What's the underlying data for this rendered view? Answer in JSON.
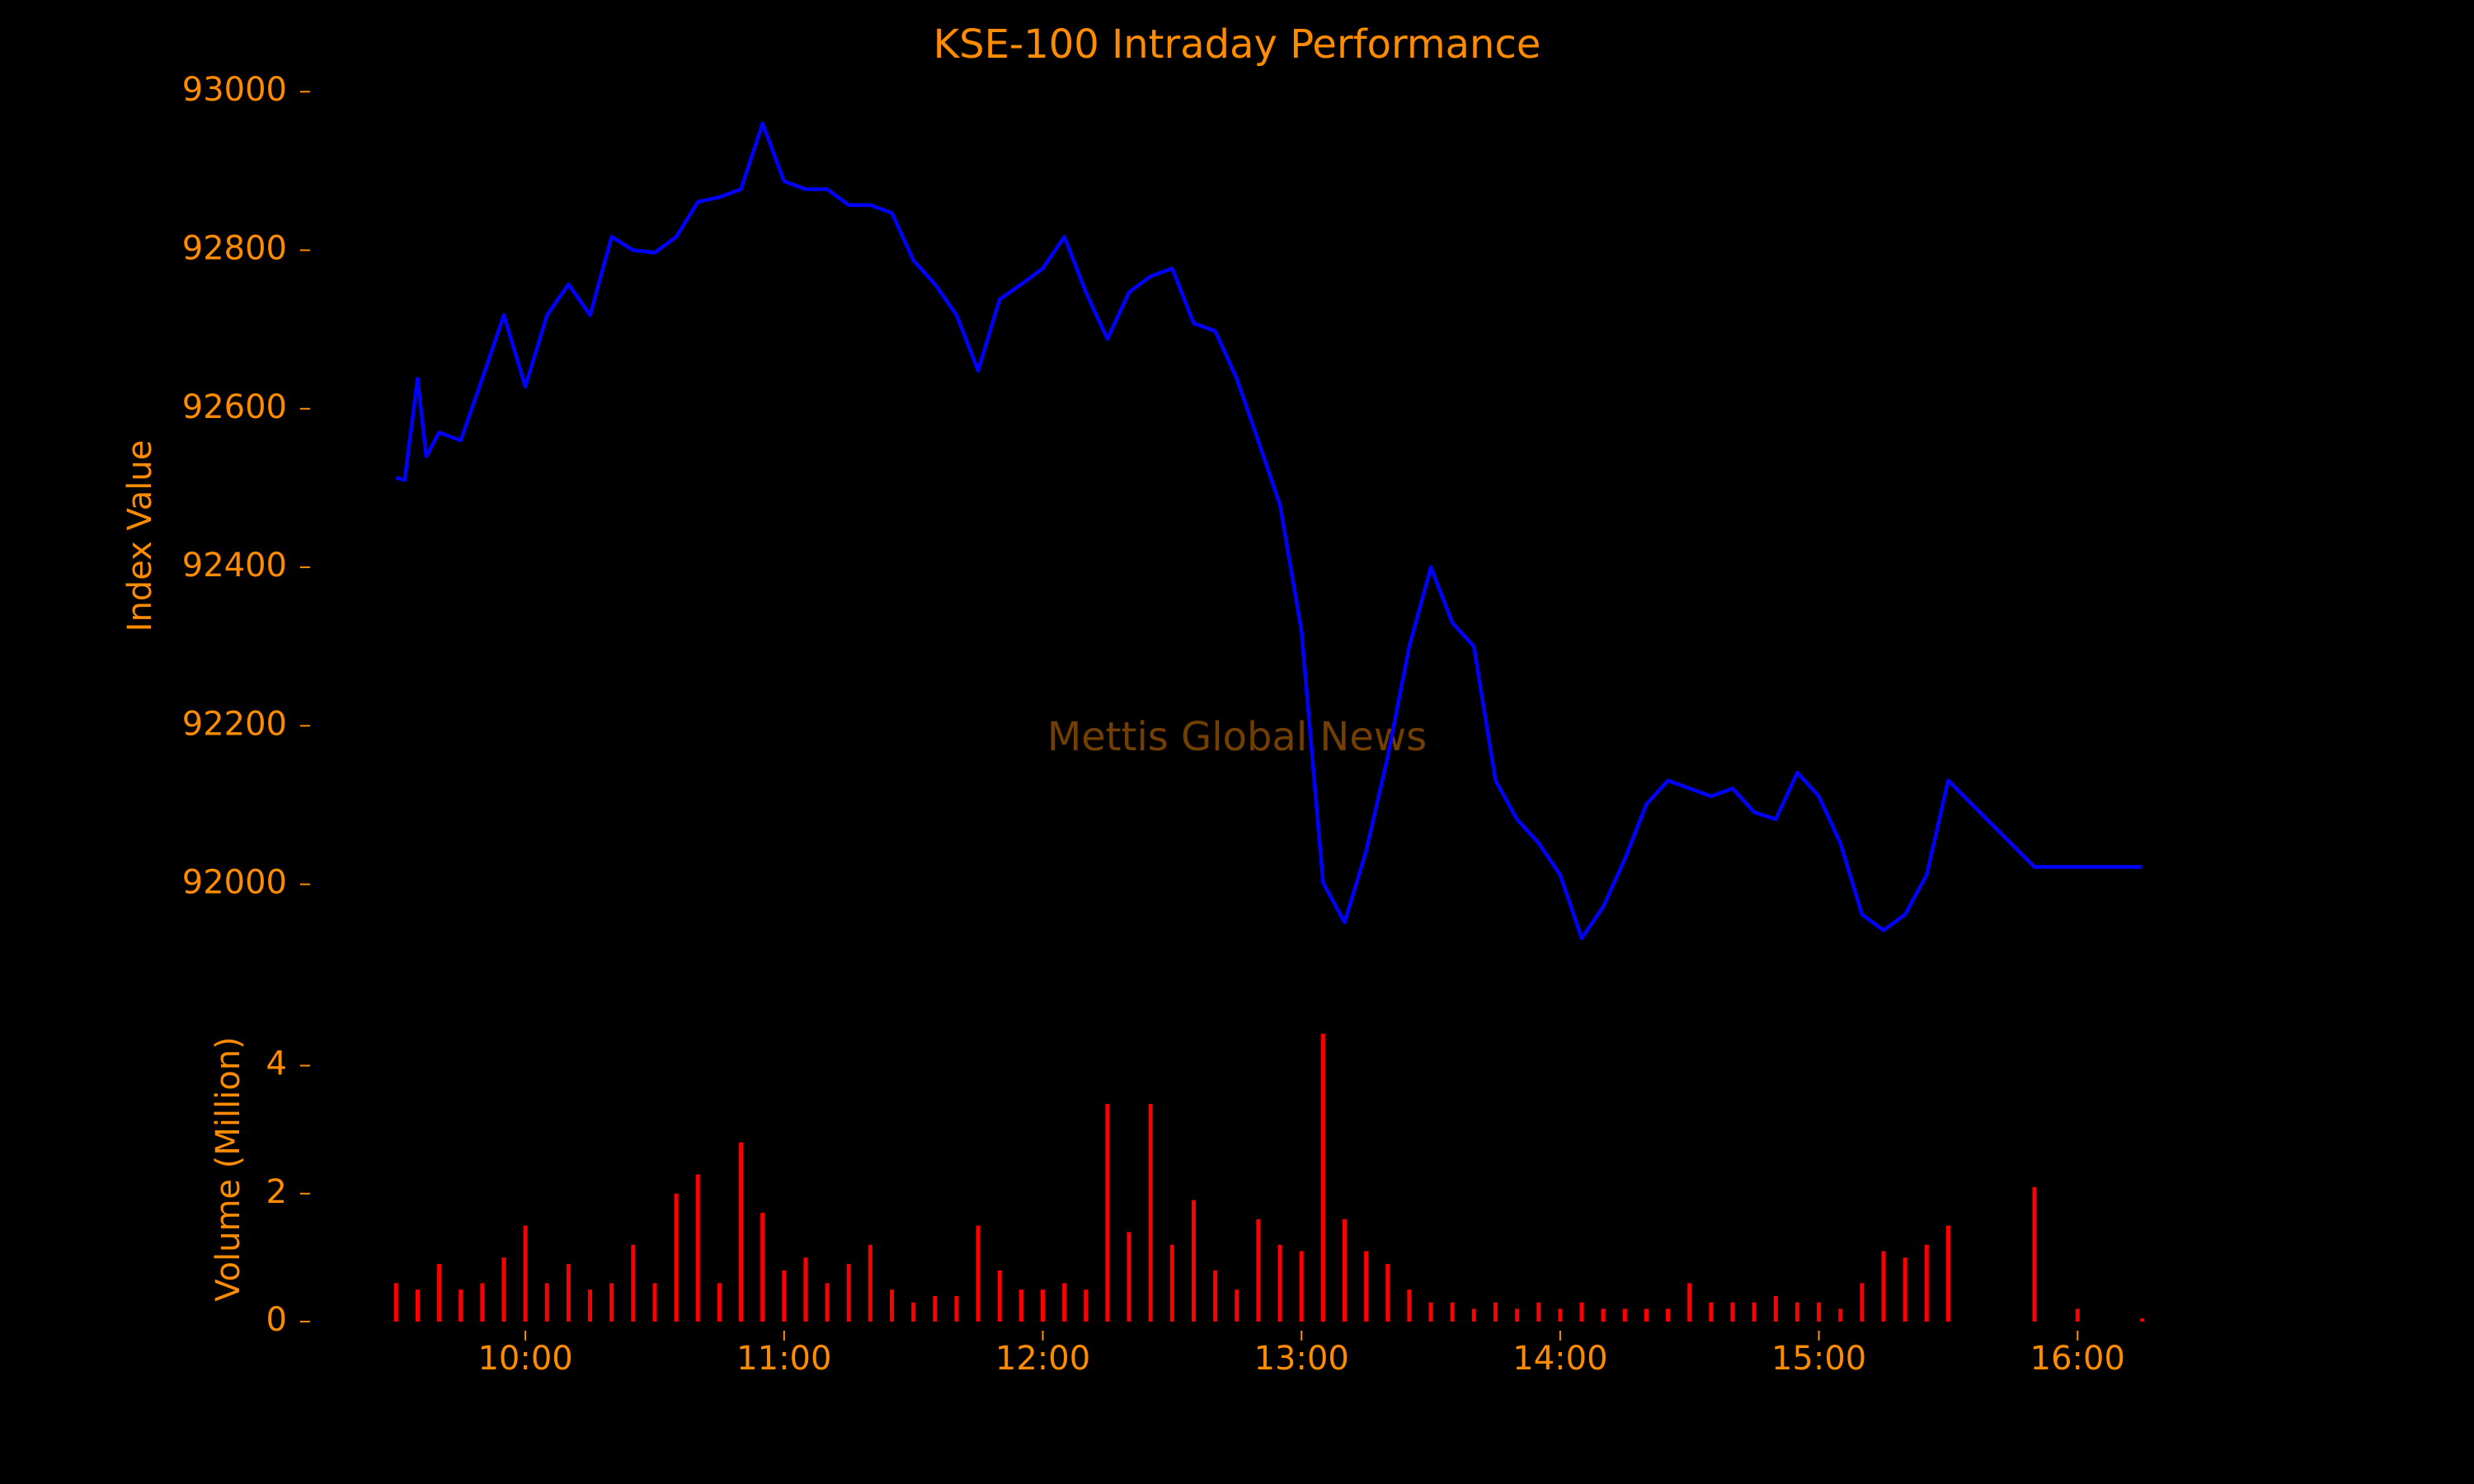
{
  "chart_data": [
    {
      "type": "line",
      "title": "KSE-100 Intraday Performance",
      "ylabel": "Index Value",
      "annotation": "Mettis Global News",
      "color": "#0000ff",
      "x": [
        "09:30",
        "09:32",
        "09:35",
        "09:37",
        "09:40",
        "09:45",
        "09:50",
        "09:55",
        "10:00",
        "10:05",
        "10:10",
        "10:15",
        "10:20",
        "10:25",
        "10:30",
        "10:35",
        "10:40",
        "10:45",
        "10:50",
        "10:55",
        "11:00",
        "11:05",
        "11:10",
        "11:15",
        "11:20",
        "11:25",
        "11:30",
        "11:35",
        "11:40",
        "11:45",
        "11:50",
        "11:55",
        "12:00",
        "12:05",
        "12:10",
        "12:15",
        "12:20",
        "12:25",
        "12:30",
        "12:35",
        "12:40",
        "12:45",
        "12:50",
        "12:55",
        "13:00",
        "13:05",
        "13:10",
        "13:15",
        "13:20",
        "13:25",
        "13:30",
        "13:35",
        "13:40",
        "13:45",
        "13:50",
        "13:55",
        "14:00",
        "14:05",
        "14:10",
        "14:15",
        "14:20",
        "14:25",
        "14:30",
        "14:35",
        "14:40",
        "14:45",
        "14:50",
        "14:55",
        "15:00",
        "15:05",
        "15:10",
        "15:15",
        "15:20",
        "15:25",
        "15:30",
        "15:50",
        "16:15"
      ],
      "values": [
        92513,
        92510,
        92638,
        92540,
        92570,
        92560,
        92638,
        92718,
        92628,
        92718,
        92757,
        92718,
        92817,
        92800,
        92797,
        92817,
        92861,
        92867,
        92877,
        92960,
        92887,
        92877,
        92877,
        92857,
        92857,
        92847,
        92787,
        92757,
        92718,
        92648,
        92738,
        92757,
        92777,
        92817,
        92747,
        92688,
        92747,
        92767,
        92777,
        92708,
        92698,
        92638,
        92559,
        92479,
        92320,
        92002,
        91952,
        92042,
        92161,
        92300,
        92400,
        92330,
        92300,
        92131,
        92082,
        92052,
        92012,
        91932,
        91972,
        92032,
        92101,
        92131,
        92121,
        92111,
        92121,
        92091,
        92082,
        92141,
        92111,
        92052,
        91962,
        91942,
        91962,
        92012,
        92131,
        92022,
        92022
      ],
      "xlim": [
        "09:20",
        "16:25"
      ],
      "ylim": [
        91880,
        93020
      ],
      "yticks": [
        92000,
        92200,
        92400,
        92600,
        92800,
        93000
      ]
    },
    {
      "type": "bar",
      "ylabel": "Volume (Million)",
      "color": "#ff0000",
      "x": [
        "09:30",
        "09:35",
        "09:40",
        "09:45",
        "09:50",
        "09:55",
        "10:00",
        "10:05",
        "10:10",
        "10:15",
        "10:20",
        "10:25",
        "10:30",
        "10:35",
        "10:40",
        "10:45",
        "10:50",
        "10:55",
        "11:00",
        "11:05",
        "11:10",
        "11:15",
        "11:20",
        "11:25",
        "11:30",
        "11:35",
        "11:40",
        "11:45",
        "11:50",
        "11:55",
        "12:00",
        "12:05",
        "12:10",
        "12:15",
        "12:20",
        "12:25",
        "12:30",
        "12:35",
        "12:40",
        "12:45",
        "12:50",
        "12:55",
        "13:00",
        "13:05",
        "13:10",
        "13:15",
        "13:20",
        "13:25",
        "13:30",
        "13:35",
        "13:40",
        "13:45",
        "13:50",
        "13:55",
        "14:00",
        "14:05",
        "14:10",
        "14:15",
        "14:20",
        "14:25",
        "14:30",
        "14:35",
        "14:40",
        "14:45",
        "14:50",
        "14:55",
        "15:00",
        "15:05",
        "15:10",
        "15:15",
        "15:20",
        "15:25",
        "15:30",
        "15:50",
        "16:00",
        "16:15"
      ],
      "values": [
        0.6,
        0.5,
        0.9,
        0.5,
        0.6,
        1.0,
        1.5,
        0.6,
        0.9,
        0.5,
        0.6,
        1.2,
        0.6,
        2.0,
        2.3,
        0.6,
        2.8,
        1.7,
        0.8,
        1.0,
        0.6,
        0.9,
        1.2,
        0.5,
        0.3,
        0.4,
        0.4,
        1.5,
        0.8,
        0.5,
        0.5,
        0.6,
        0.5,
        3.4,
        1.4,
        3.4,
        1.2,
        1.9,
        0.8,
        0.5,
        1.6,
        1.2,
        1.1,
        4.5,
        1.6,
        1.1,
        0.9,
        0.5,
        0.3,
        0.3,
        0.2,
        0.3,
        0.2,
        0.3,
        0.2,
        0.3,
        0.2,
        0.2,
        0.2,
        0.2,
        0.6,
        0.3,
        0.3,
        0.3,
        0.4,
        0.3,
        0.3,
        0.2,
        0.6,
        1.1,
        1.0,
        1.2,
        1.5,
        2.1,
        0.2,
        0.05
      ],
      "xlim": [
        "09:20",
        "16:25"
      ],
      "ylim": [
        0,
        4.6
      ],
      "yticks": [
        0,
        2,
        4
      ],
      "xticks": [
        "10:00",
        "11:00",
        "12:00",
        "13:00",
        "14:00",
        "15:00",
        "16:00"
      ]
    }
  ]
}
